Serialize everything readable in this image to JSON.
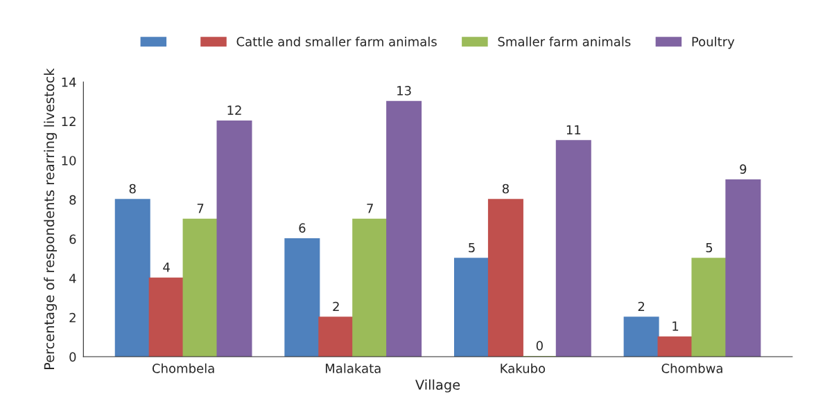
{
  "chart_data": {
    "type": "bar",
    "xlabel": "Village",
    "ylabel": "Percentage of respondents rearring livestock",
    "categories": [
      "Chombela",
      "Malakata",
      "Kakubo",
      "Chombwa"
    ],
    "series": [
      {
        "color": "#4f81bd",
        "values": [
          8,
          6,
          5,
          2
        ]
      },
      {
        "name": "Cattle and smaller farm animals",
        "color": "#c0504d",
        "values": [
          4,
          2,
          8,
          1
        ]
      },
      {
        "name": "Smaller farm animals",
        "color": "#9bbb59",
        "values": [
          7,
          7,
          0,
          5
        ]
      },
      {
        "name": "Poultry",
        "color": "#8064a2",
        "values": [
          12,
          13,
          11,
          9
        ]
      }
    ],
    "ylim": [
      0,
      14
    ],
    "yticks": [
      0,
      2,
      4,
      6,
      8,
      10,
      12,
      14
    ],
    "data_labels": true,
    "legend": "top",
    "grid": false
  }
}
